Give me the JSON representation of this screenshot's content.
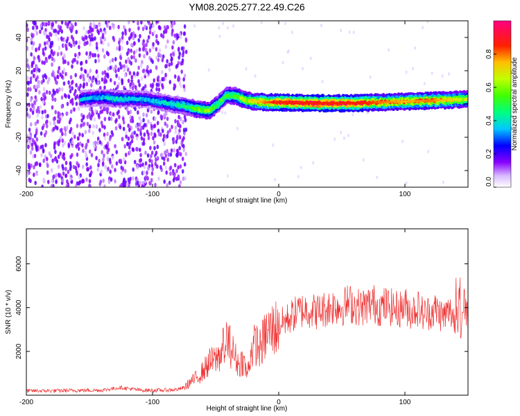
{
  "title": "YM08.2025.277.22.49.C26",
  "chart_data": [
    {
      "type": "heatmap",
      "title": "YM08.2025.277.22.49.C26",
      "xlabel": "Height of straight line (km)",
      "ylabel": "Frequency (Hz)",
      "xlim": [
        -200,
        150
      ],
      "ylim": [
        -50,
        50
      ],
      "xticks": [
        -200,
        -100,
        0,
        100
      ],
      "yticks": [
        -40,
        -20,
        0,
        20,
        40
      ],
      "colorbar": {
        "label": "Normalized spectral amplitude",
        "range": [
          0,
          1
        ],
        "ticks": [
          "0.0",
          "0.2",
          "0.4",
          "0.6",
          "0.8"
        ],
        "tick_values": [
          0.0,
          0.2,
          0.4,
          0.6,
          0.8
        ]
      },
      "noise_region": {
        "x_from": -200,
        "x_to": -73,
        "level": 0.15
      },
      "ridge": [
        {
          "x": -157,
          "freq": 3,
          "amp": 0.35
        },
        {
          "x": -140,
          "freq": 4,
          "amp": 0.35
        },
        {
          "x": -130,
          "freq": 3,
          "amp": 0.4
        },
        {
          "x": -110,
          "freq": 3,
          "amp": 0.35
        },
        {
          "x": -100,
          "freq": 2,
          "amp": 0.35
        },
        {
          "x": -85,
          "freq": 0,
          "amp": 0.4
        },
        {
          "x": -75,
          "freq": -1,
          "amp": 0.45
        },
        {
          "x": -65,
          "freq": -3,
          "amp": 0.55
        },
        {
          "x": -55,
          "freq": -4,
          "amp": 0.6
        },
        {
          "x": -48,
          "freq": 0,
          "amp": 0.5
        },
        {
          "x": -42,
          "freq": 5,
          "amp": 0.5
        },
        {
          "x": -35,
          "freq": 5,
          "amp": 0.55
        },
        {
          "x": -25,
          "freq": 2,
          "amp": 0.65
        },
        {
          "x": -10,
          "freq": 1,
          "amp": 0.8
        },
        {
          "x": 0,
          "freq": 1,
          "amp": 0.9
        },
        {
          "x": 30,
          "freq": 0.5,
          "amp": 0.95
        },
        {
          "x": 60,
          "freq": 0.5,
          "amp": 0.9
        },
        {
          "x": 80,
          "freq": 1,
          "amp": 0.8
        },
        {
          "x": 100,
          "freq": 1.5,
          "amp": 0.75
        },
        {
          "x": 120,
          "freq": 2,
          "amp": 0.8
        },
        {
          "x": 140,
          "freq": 2.5,
          "amp": 0.7
        },
        {
          "x": 150,
          "freq": 3,
          "amp": 0.6
        }
      ]
    },
    {
      "type": "line",
      "xlabel": "Height of straight line (km)",
      "ylabel": "SNR (10 * v/v)",
      "xlim": [
        -200,
        150
      ],
      "ylim": [
        0,
        7600
      ],
      "xticks": [
        -200,
        -100,
        0,
        100
      ],
      "yticks": [
        2000,
        4000,
        6000
      ],
      "color": "#ee3030",
      "series": [
        {
          "name": "SNR",
          "x": [
            -200,
            -180,
            -160,
            -140,
            -125,
            -110,
            -100,
            -90,
            -80,
            -75,
            -70,
            -65,
            -60,
            -55,
            -50,
            -45,
            -42,
            -38,
            -35,
            -32,
            -28,
            -25,
            -22,
            -18,
            -15,
            -10,
            -5,
            0,
            5,
            10,
            15,
            20,
            25,
            30,
            35,
            40,
            45,
            50,
            55,
            60,
            65,
            70,
            75,
            80,
            85,
            90,
            95,
            100,
            105,
            110,
            115,
            120,
            125,
            130,
            135,
            140,
            143,
            145,
            147,
            150
          ],
          "y": [
            200,
            200,
            220,
            230,
            350,
            230,
            220,
            230,
            260,
            350,
            600,
            800,
            1100,
            1500,
            1600,
            2000,
            2500,
            2200,
            1800,
            1400,
            1600,
            900,
            2000,
            2400,
            2100,
            2800,
            3000,
            3200,
            3400,
            3600,
            3800,
            3900,
            3900,
            3800,
            3900,
            4000,
            4100,
            4000,
            4200,
            4100,
            4000,
            4100,
            4200,
            4000,
            4100,
            4000,
            3900,
            4100,
            3800,
            4000,
            3700,
            3800,
            3900,
            3600,
            3800,
            3600,
            3000,
            3200,
            4500,
            3500
          ]
        }
      ]
    }
  ]
}
